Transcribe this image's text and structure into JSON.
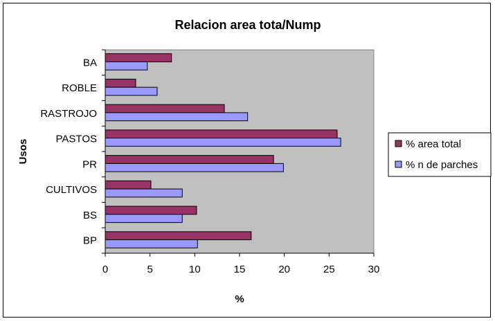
{
  "chart_data": {
    "type": "bar",
    "orientation": "horizontal",
    "title": "Relacion area tota/Nump",
    "xlabel": "%",
    "ylabel": "Usos",
    "categories": [
      "BA",
      "ROBLE",
      "RASTROJO",
      "PASTOS",
      "PR",
      "CULTIVOS",
      "BS",
      "BP"
    ],
    "series": [
      {
        "name": "% area total",
        "color": "#993366",
        "values": [
          7.4,
          3.4,
          13.3,
          25.9,
          18.8,
          5.1,
          10.2,
          16.3
        ]
      },
      {
        "name": "% n de parches",
        "color": "#9999ff",
        "values": [
          4.7,
          5.8,
          15.9,
          26.3,
          19.9,
          8.6,
          8.6,
          10.3
        ]
      }
    ],
    "xlim": [
      0,
      30
    ],
    "xticks": [
      0,
      5,
      10,
      15,
      20,
      25,
      30
    ],
    "plot_background": "#c0c0c0",
    "legend_position": "right",
    "grid": false
  }
}
